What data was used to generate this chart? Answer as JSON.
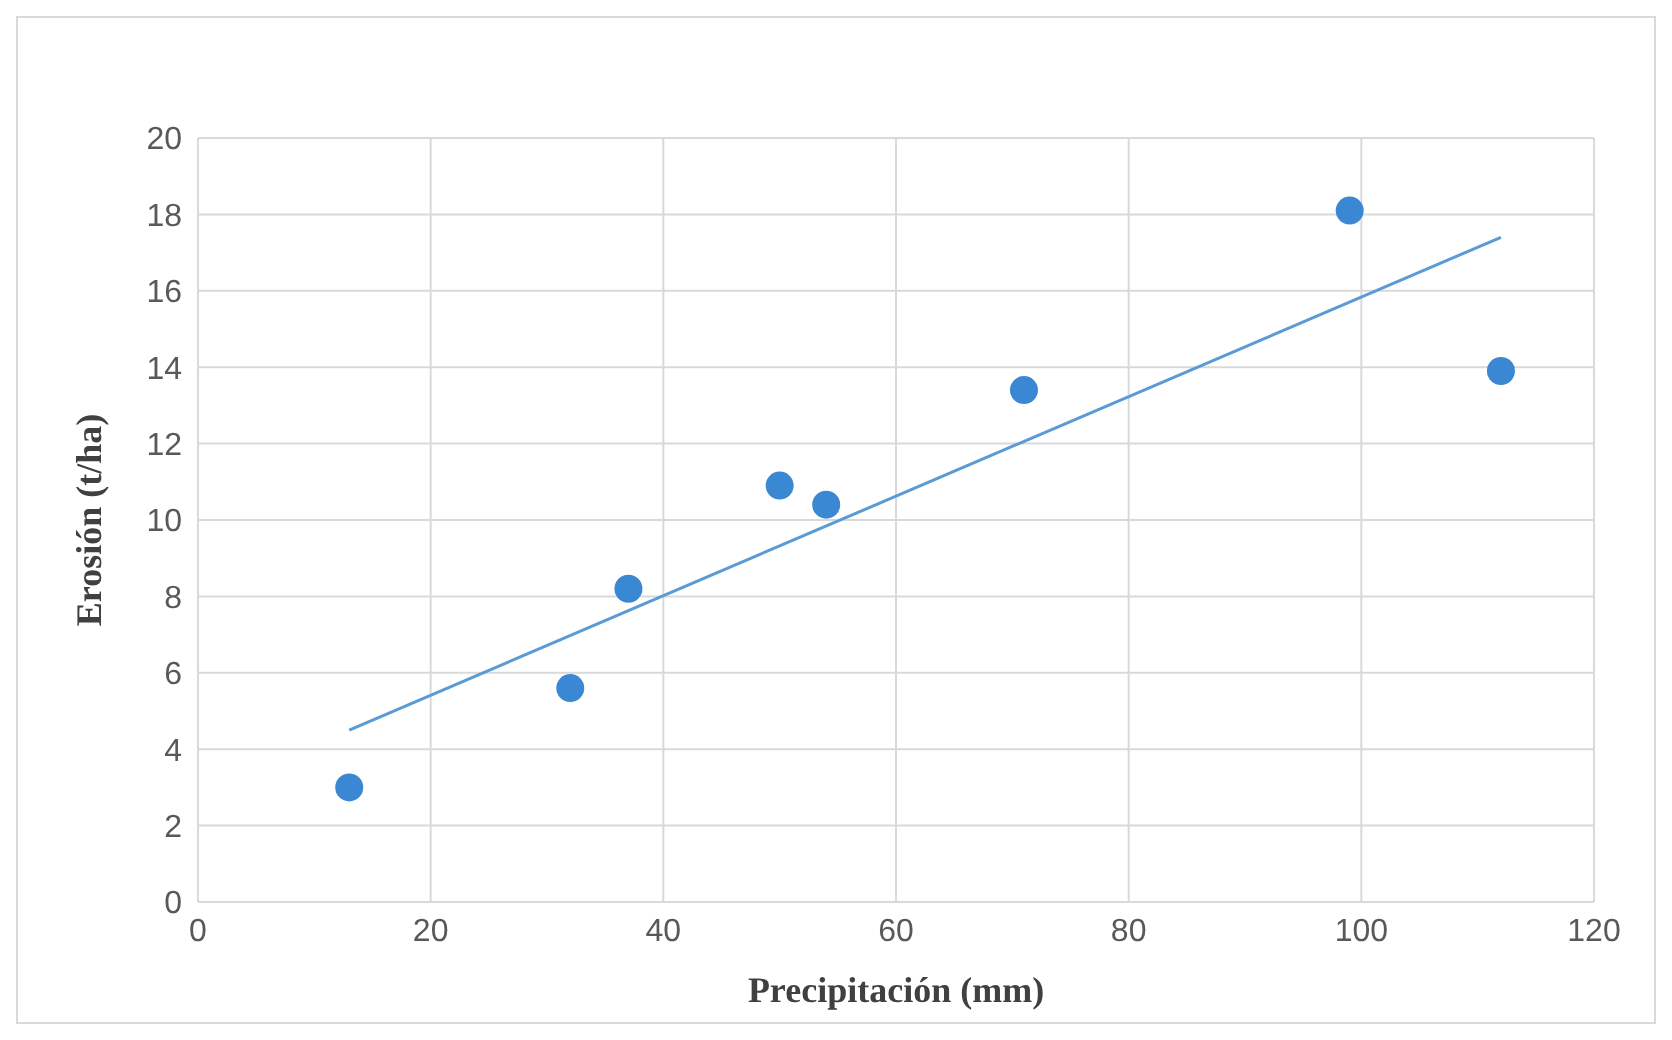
{
  "chart_data": {
    "type": "scatter",
    "xlabel": "Precipitación (mm)",
    "ylabel": "Erosión (t/ha)",
    "xlim": [
      0,
      120
    ],
    "xticks": [
      0,
      20,
      40,
      60,
      80,
      100,
      120
    ],
    "ylim": [
      0,
      20
    ],
    "yticks": [
      0,
      2,
      4,
      6,
      8,
      10,
      12,
      14,
      16,
      18,
      20
    ],
    "grid": true,
    "series": [
      {
        "marker": "circle",
        "color": "#3a87d4",
        "x": [
          13,
          32,
          37,
          50,
          54,
          71,
          99,
          112
        ],
        "values": [
          3.0,
          5.6,
          8.2,
          10.9,
          10.4,
          13.4,
          18.1,
          13.9
        ]
      },
      {
        "type": "line",
        "color": "#5b9bd5",
        "x": [
          13,
          112
        ],
        "values": [
          4.5,
          17.4
        ]
      }
    ]
  }
}
